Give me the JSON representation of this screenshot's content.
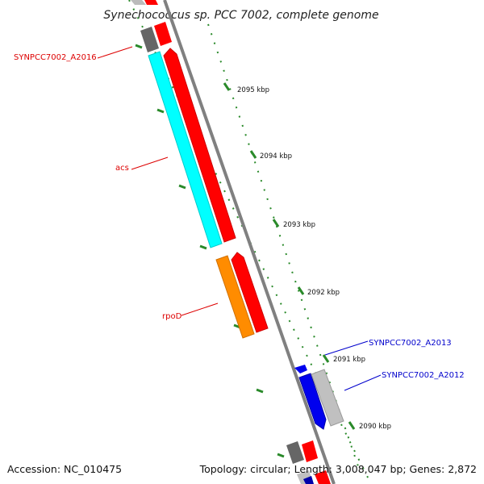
{
  "title": "Synechococcus sp. PCC 7002, complete genome",
  "footer": {
    "accession": "Accession: NC_010475",
    "summary": "Topology: circular; Length: 3,008,047 bp; Genes: 2,872"
  },
  "colors": {
    "backbone": "#808080",
    "ticks": "#2a8a2a",
    "cds_forward": "#ff0000",
    "cds_reverse_blue": "#0000ee",
    "gene_acs": "#00ffff",
    "gene_rpoD": "#ff8c00",
    "gene_other": "#666666",
    "gene_grey": "#bbbbbb",
    "label_red": "#dd0000",
    "label_blue": "#0000cc"
  },
  "scale": {
    "ticks": [
      {
        "label": "2095 kbp"
      },
      {
        "label": "2094 kbp"
      },
      {
        "label": "2093 kbp"
      },
      {
        "label": "2092 kbp"
      },
      {
        "label": "2091 kbp"
      },
      {
        "label": "2090 kbp"
      }
    ]
  },
  "gene_labels": [
    {
      "text": "SYNPCC7002_A2016",
      "color": "red"
    },
    {
      "text": "acs",
      "color": "red"
    },
    {
      "text": "rpoD",
      "color": "red"
    },
    {
      "text": "SYNPCC7002_A2013",
      "color": "blue"
    },
    {
      "text": "SYNPCC7002_A2012",
      "color": "blue"
    }
  ]
}
